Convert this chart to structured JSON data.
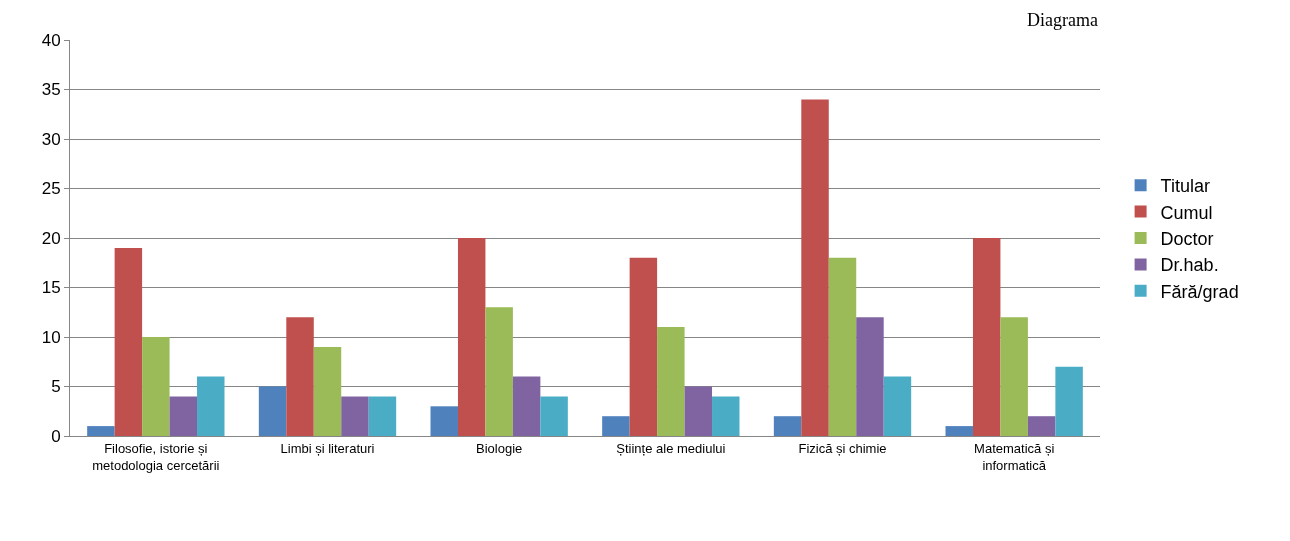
{
  "chart_data": {
    "type": "bar",
    "categories": [
      "Filosofie, istorie și metodologia cercetării",
      "Limbi și literaturi",
      "Biologie",
      "Științe ale mediului",
      "Fizică și chimie",
      "Matematică și informatică"
    ],
    "series": [
      {
        "name": "Titular",
        "color": "#4f81bd",
        "values": [
          1,
          5,
          3,
          2,
          2,
          1
        ]
      },
      {
        "name": "Cumul",
        "color": "#c0504d",
        "values": [
          19,
          12,
          20,
          18,
          34,
          20
        ]
      },
      {
        "name": "Doctor",
        "color": "#9bbb59",
        "values": [
          10,
          9,
          13,
          11,
          18,
          12
        ]
      },
      {
        "name": "Dr.hab.",
        "color": "#8064a2",
        "values": [
          4,
          4,
          6,
          5,
          12,
          2
        ]
      },
      {
        "name": "Fără/grad",
        "color": "#4bacc6",
        "values": [
          6,
          4,
          4,
          4,
          6,
          7
        ]
      }
    ],
    "ylim": [
      0,
      40
    ],
    "yticks": [
      0,
      5,
      10,
      15,
      20,
      25,
      30,
      35,
      40
    ],
    "grid": "y",
    "legend": "right",
    "annotations": [
      "Diagrama"
    ]
  }
}
